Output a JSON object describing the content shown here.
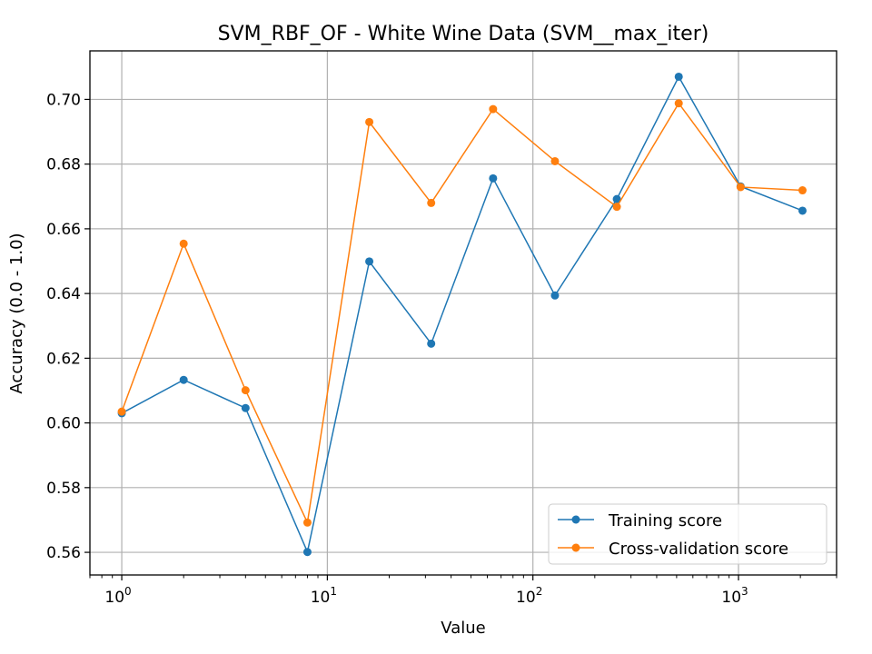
{
  "chart_data": {
    "type": "line",
    "title": "SVM_RBF_OF - White Wine Data (SVM__max_iter)",
    "xlabel": "Value",
    "ylabel": "Accuracy (0.0 - 1.0)",
    "xscale": "log",
    "xlim": [
      0.7,
      3000
    ],
    "ylim": [
      0.553,
      0.715
    ],
    "grid": true,
    "legend_position": "lower-right",
    "x": [
      1,
      2,
      4,
      8,
      16,
      32,
      64,
      128,
      256,
      512,
      1024,
      2048
    ],
    "x_ticks": [
      {
        "value": 1,
        "base": "10",
        "exp": "0"
      },
      {
        "value": 10,
        "base": "10",
        "exp": "1"
      },
      {
        "value": 100,
        "base": "10",
        "exp": "2"
      },
      {
        "value": 1000,
        "base": "10",
        "exp": "3"
      }
    ],
    "y_ticks": [
      {
        "value": 0.56,
        "label": "0.56"
      },
      {
        "value": 0.58,
        "label": "0.58"
      },
      {
        "value": 0.6,
        "label": "0.60"
      },
      {
        "value": 0.62,
        "label": "0.62"
      },
      {
        "value": 0.64,
        "label": "0.64"
      },
      {
        "value": 0.66,
        "label": "0.66"
      },
      {
        "value": 0.68,
        "label": "0.68"
      },
      {
        "value": 0.7,
        "label": "0.70"
      }
    ],
    "series": [
      {
        "name": "Training score",
        "color": "#1f77b4",
        "values": [
          0.603,
          0.6133,
          0.6046,
          0.5601,
          0.6499,
          0.6245,
          0.6756,
          0.6394,
          0.6692,
          0.707,
          0.6731,
          0.6656
        ]
      },
      {
        "name": "Cross-validation score",
        "color": "#ff7f0e",
        "values": [
          0.6035,
          0.6554,
          0.6101,
          0.5692,
          0.693,
          0.668,
          0.697,
          0.6809,
          0.6668,
          0.6988,
          0.6729,
          0.6719
        ]
      }
    ]
  }
}
